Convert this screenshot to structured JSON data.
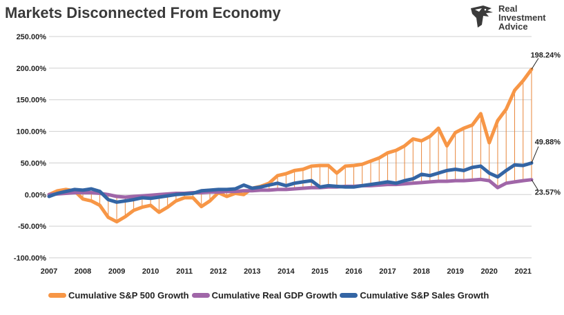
{
  "title": "Markets Disconnected From Economy",
  "logo": {
    "lines": [
      "Real",
      "Investment",
      "Advice"
    ],
    "icon": "eagle-head-icon"
  },
  "chart_data": {
    "type": "line",
    "title": "Markets Disconnected From Economy",
    "xlabel": "",
    "ylabel": "",
    "xlim": [
      2007,
      2021.25
    ],
    "ylim": [
      -100,
      250
    ],
    "grid": true,
    "y_ticks": [
      {
        "value": 250,
        "label": "250.00%"
      },
      {
        "value": 200,
        "label": "200.00%"
      },
      {
        "value": 150,
        "label": "150.00%"
      },
      {
        "value": 100,
        "label": "100.00%"
      },
      {
        "value": 50,
        "label": "50.00%"
      },
      {
        "value": 0,
        "label": "0.00%"
      },
      {
        "value": -50,
        "label": "-50.00%"
      },
      {
        "value": -100,
        "label": "-100.00%"
      }
    ],
    "x_ticks": [
      "2007",
      "2008",
      "2009",
      "2010",
      "2011",
      "2012",
      "2013",
      "2014",
      "2015",
      "2016",
      "2017",
      "2018",
      "2019",
      "2020",
      "2021"
    ],
    "legend_position": "bottom",
    "x": [
      2007.0,
      2007.25,
      2007.5,
      2007.75,
      2008.0,
      2008.25,
      2008.5,
      2008.75,
      2009.0,
      2009.25,
      2009.5,
      2009.75,
      2010.0,
      2010.25,
      2010.5,
      2010.75,
      2011.0,
      2011.25,
      2011.5,
      2011.75,
      2012.0,
      2012.25,
      2012.5,
      2012.75,
      2013.0,
      2013.25,
      2013.5,
      2013.75,
      2014.0,
      2014.25,
      2014.5,
      2014.75,
      2015.0,
      2015.25,
      2015.5,
      2015.75,
      2016.0,
      2016.25,
      2016.5,
      2016.75,
      2017.0,
      2017.25,
      2017.5,
      2017.75,
      2018.0,
      2018.25,
      2018.5,
      2018.75,
      2019.0,
      2019.25,
      2019.5,
      2019.75,
      2020.0,
      2020.25,
      2020.5,
      2020.75,
      2021.0,
      2021.25
    ],
    "series": [
      {
        "name": "Cumulative S&P 500 Growth",
        "color": "#F79646",
        "values": [
          0,
          6,
          8,
          6,
          -7,
          -10,
          -17,
          -36,
          -43,
          -35,
          -25,
          -20,
          -17,
          -28,
          -20,
          -10,
          -5,
          -5,
          -19,
          -10,
          3,
          -3,
          2,
          0,
          10,
          13,
          18,
          30,
          33,
          38,
          40,
          45,
          46,
          46,
          34,
          45,
          46,
          48,
          53,
          58,
          66,
          70,
          77,
          88,
          85,
          92,
          105,
          77,
          98,
          105,
          110,
          128,
          82,
          117,
          135,
          165,
          180,
          198.24
        ]
      },
      {
        "name": "Cumulative Real GDP Growth",
        "color": "#A066A8",
        "values": [
          0,
          1,
          2,
          3,
          3,
          3,
          2,
          0,
          -3,
          -4,
          -3,
          -2,
          -1,
          0,
          1,
          2,
          2,
          3,
          3,
          4,
          4,
          5,
          5,
          6,
          6,
          7,
          7,
          8,
          8,
          9,
          10,
          11,
          11,
          12,
          12,
          13,
          13,
          14,
          14,
          15,
          16,
          16,
          17,
          18,
          19,
          20,
          21,
          21,
          22,
          22,
          23,
          24,
          22,
          11,
          18,
          20,
          22,
          23.57
        ]
      },
      {
        "name": "Cumulative S&P Sales Growth",
        "color": "#3465A4",
        "values": [
          -3,
          2,
          5,
          8,
          7,
          9,
          5,
          -8,
          -12,
          -10,
          -8,
          -5,
          -6,
          -4,
          -2,
          0,
          1,
          2,
          6,
          7,
          8,
          8,
          9,
          15,
          10,
          12,
          15,
          18,
          14,
          18,
          20,
          22,
          12,
          14,
          13,
          12,
          12,
          14,
          16,
          18,
          20,
          18,
          22,
          25,
          32,
          30,
          34,
          38,
          40,
          38,
          43,
          45,
          34,
          28,
          38,
          47,
          46,
          49.88
        ]
      }
    ],
    "annotations": [
      {
        "text": "198.24%",
        "series": 0
      },
      {
        "text": "49.88%",
        "series": 2
      },
      {
        "text": "23.57%",
        "series": 1
      }
    ],
    "drop_line_color": "#E8853A"
  }
}
